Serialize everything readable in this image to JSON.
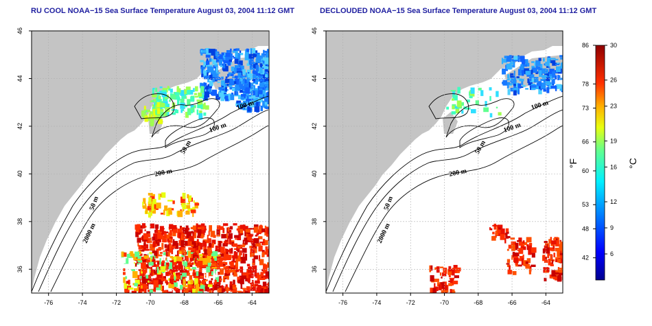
{
  "chart_data": [
    {
      "type": "heatmap",
      "title": "RU COOL NOAA−15 Sea Surface Temperature August 03, 2004 11:12 GMT",
      "x_ticks": [
        "-76",
        "-74",
        "-72",
        "-70",
        "-68",
        "-66",
        "-64"
      ],
      "y_ticks": [
        "36",
        "38",
        "40",
        "42",
        "44",
        "46"
      ],
      "xlim": [
        -77,
        -63
      ],
      "ylim": [
        35,
        46
      ],
      "grid": true,
      "contour_labels": [
        "100 m",
        "100 m",
        "50 m",
        "200 m",
        "50 m",
        "2000 m"
      ]
    },
    {
      "type": "heatmap",
      "title": "DECLOUDED NOAA−15 Sea Surface Temperature August 03, 2004 11:12 GMT",
      "x_ticks": [
        "-76",
        "-74",
        "-72",
        "-70",
        "-68",
        "-66",
        "-64"
      ],
      "y_ticks": [
        "36",
        "38",
        "40",
        "42",
        "44",
        "46"
      ],
      "xlim": [
        -77,
        -63
      ],
      "ylim": [
        35,
        46
      ],
      "grid": true,
      "contour_labels": [
        "100 m",
        "100 m",
        "50 m",
        "200 m",
        "50 m",
        "2000 m"
      ]
    }
  ],
  "colorbar": {
    "fahrenheit_ticks": [
      "86",
      "78",
      "73",
      "66",
      "60",
      "53",
      "48",
      "42"
    ],
    "celsius_ticks": [
      "30",
      "26",
      "23",
      "19",
      "16",
      "12",
      "9",
      "6"
    ],
    "fahrenheit_values": [
      86,
      78,
      73,
      66,
      60,
      53,
      48,
      42
    ],
    "celsius_values": [
      30,
      26,
      23,
      19,
      16,
      12,
      9,
      6
    ],
    "celsius_range": [
      3,
      30
    ],
    "unit_f": "°F",
    "unit_c": "°C"
  },
  "colors": {
    "land": "#c4c4c4",
    "title_text": "#1e1ea0",
    "contour": "#000000",
    "grid": "#b0b0b0"
  }
}
